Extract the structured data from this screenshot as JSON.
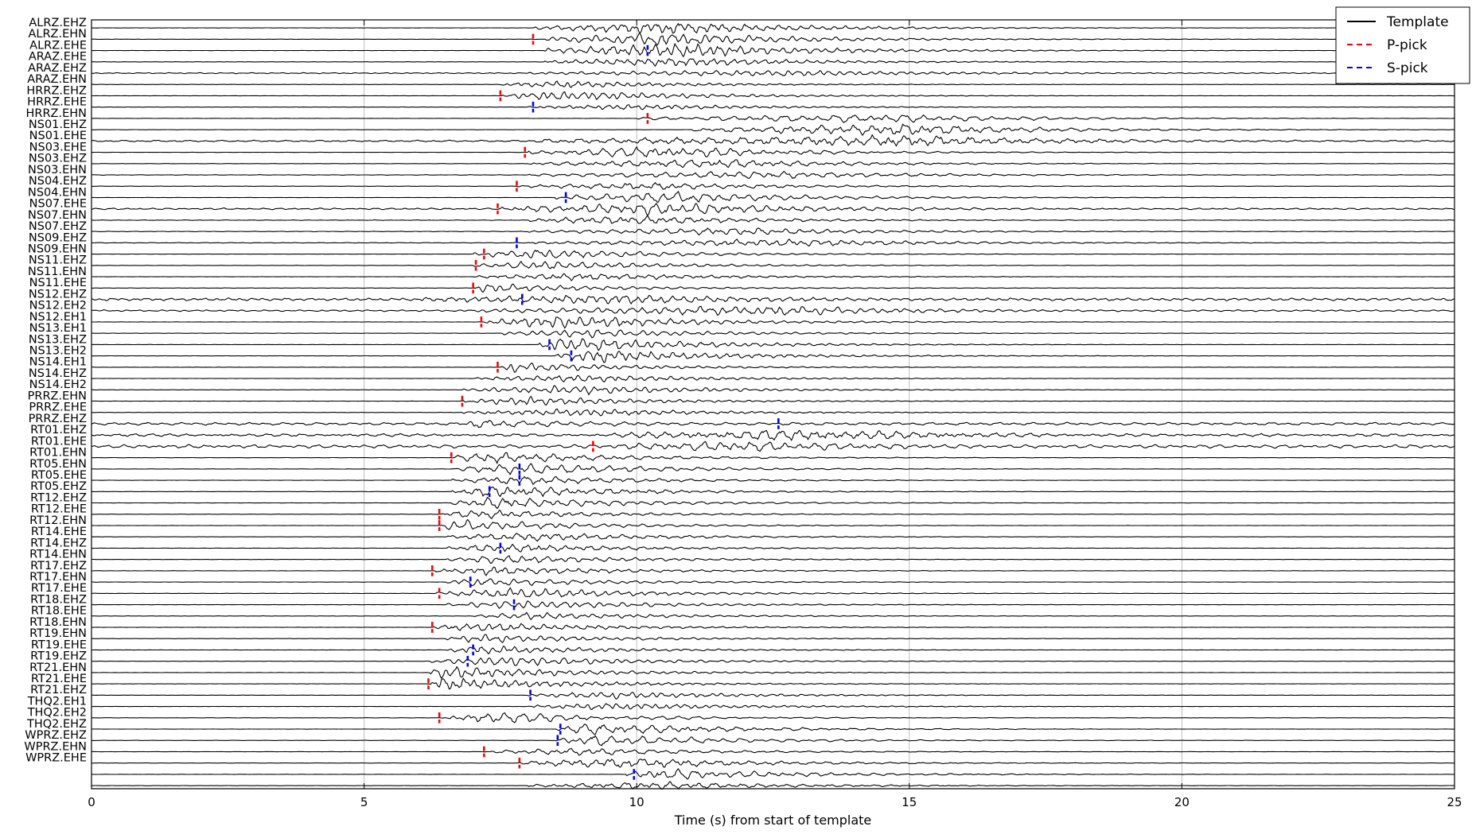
{
  "chart_data": {
    "type": "line",
    "title": "",
    "xlabel": "Time (s) from start of template",
    "ylabel": "",
    "xlim": [
      0,
      25
    ],
    "xticks": [
      0,
      5,
      10,
      15,
      20,
      25
    ],
    "grid": "vertical",
    "legend": {
      "placement": "top-right",
      "entries": [
        {
          "label": "Template",
          "color": "#000000",
          "style": "solid"
        },
        {
          "label": "P-pick",
          "color": "#ff0000",
          "style": "dashed"
        },
        {
          "label": "S-pick",
          "color": "#0000ff",
          "style": "dashed"
        }
      ]
    },
    "traces": [
      {
        "label": "ALRZ.EHZ",
        "onset": 8.1,
        "peak": 10.7,
        "amp": 0.8,
        "noise": 0.05
      },
      {
        "label": "ALRZ.EHN",
        "onset": 8.3,
        "peak": 10.5,
        "amp": 0.9,
        "noise": 0.05,
        "pick": {
          "type": "P",
          "t": 8.1
        }
      },
      {
        "label": "ALRZ.EHE",
        "onset": 8.3,
        "peak": 10.7,
        "amp": 1.0,
        "noise": 0.05,
        "pick": {
          "type": "S",
          "t": 10.2
        }
      },
      {
        "label": "ARAZ.EHE",
        "onset": 8.3,
        "peak": 10.7,
        "amp": 0.6,
        "noise": 0.05
      },
      {
        "label": "ARAZ.EHZ",
        "onset": 8.0,
        "peak": 12.9,
        "amp": 0.4,
        "noise": 0.2
      },
      {
        "label": "ARAZ.EHN",
        "onset": 7.5,
        "peak": 8.6,
        "amp": 0.5,
        "noise": 0.05
      },
      {
        "label": "HRRZ.EHZ",
        "onset": 7.5,
        "peak": 8.6,
        "amp": 0.7,
        "noise": 0.05,
        "pick": {
          "type": "P",
          "t": 7.5
        }
      },
      {
        "label": "HRRZ.EHE",
        "onset": 8.0,
        "peak": 10.0,
        "amp": 0.4,
        "noise": 0.05,
        "pick": {
          "type": "S",
          "t": 8.1
        }
      },
      {
        "label": "HRRZ.EHN",
        "onset": 10.0,
        "peak": 14.6,
        "amp": 0.6,
        "noise": 0.05,
        "pick": {
          "type": "P",
          "t": 10.2
        }
      },
      {
        "label": "NS01.EHZ",
        "onset": 11.0,
        "peak": 14.9,
        "amp": 0.8,
        "noise": 0.05
      },
      {
        "label": "NS01.EHE",
        "onset": 8.0,
        "peak": 15.1,
        "amp": 0.7,
        "noise": 0.3
      },
      {
        "label": "NS03.EHE",
        "onset": 8.0,
        "peak": 10.4,
        "amp": 0.8,
        "noise": 0.05,
        "pick": {
          "type": "P",
          "t": 7.95
        }
      },
      {
        "label": "NS03.EHZ",
        "onset": 8.0,
        "peak": 11.5,
        "amp": 0.6,
        "noise": 0.05
      },
      {
        "label": "NS03.EHN",
        "onset": 8.0,
        "peak": 12.5,
        "amp": 0.5,
        "noise": 0.1
      },
      {
        "label": "NS04.EHZ",
        "onset": 7.8,
        "peak": 10.4,
        "amp": 0.5,
        "noise": 0.05,
        "pick": {
          "type": "P",
          "t": 7.8
        }
      },
      {
        "label": "NS04.EHN",
        "onset": 8.5,
        "peak": 10.6,
        "amp": 0.8,
        "noise": 0.05,
        "pick": {
          "type": "S",
          "t": 8.7
        }
      },
      {
        "label": "NS07.EHE",
        "onset": 7.5,
        "peak": 10.6,
        "amp": 0.8,
        "noise": 0.3,
        "pick": {
          "type": "P",
          "t": 7.45
        }
      },
      {
        "label": "NS07.EHN",
        "onset": 8.0,
        "peak": 9.8,
        "amp": 0.6,
        "noise": 0.1
      },
      {
        "label": "NS07.EHZ",
        "onset": 8.0,
        "peak": 12.0,
        "amp": 0.5,
        "noise": 0.1
      },
      {
        "label": "NS09.EHZ",
        "onset": 8.0,
        "peak": 13.0,
        "amp": 0.5,
        "noise": 0.1,
        "pick": {
          "type": "S",
          "t": 7.8
        }
      },
      {
        "label": "NS09.EHN",
        "onset": 7.0,
        "peak": 8.2,
        "amp": 0.7,
        "noise": 0.05,
        "pick": {
          "type": "P",
          "t": 7.2
        }
      },
      {
        "label": "NS11.EHZ",
        "onset": 7.0,
        "peak": 8.2,
        "amp": 0.6,
        "noise": 0.05,
        "pick": {
          "type": "P",
          "t": 7.05
        }
      },
      {
        "label": "NS11.EHN",
        "onset": 7.0,
        "peak": 9.0,
        "amp": 0.5,
        "noise": 0.05
      },
      {
        "label": "NS11.EHE",
        "onset": 7.0,
        "peak": 7.2,
        "amp": 0.6,
        "noise": 0.05,
        "pick": {
          "type": "P",
          "t": 7.0
        }
      },
      {
        "label": "NS12.EHZ",
        "onset": 6.0,
        "peak": 9.8,
        "amp": 0.6,
        "noise": 0.5,
        "pick": {
          "type": "S",
          "t": 7.9
        }
      },
      {
        "label": "NS12.EH2",
        "onset": 7.0,
        "peak": 12.5,
        "amp": 0.6,
        "noise": 0.3
      },
      {
        "label": "NS12.EH1",
        "onset": 7.2,
        "peak": 8.7,
        "amp": 0.9,
        "noise": 0.05,
        "pick": {
          "type": "P",
          "t": 7.15
        }
      },
      {
        "label": "NS13.EH1",
        "onset": 7.5,
        "peak": 9.0,
        "amp": 0.6,
        "noise": 0.05
      },
      {
        "label": "NS13.EHZ",
        "onset": 8.2,
        "peak": 8.6,
        "amp": 1.0,
        "noise": 0.05,
        "pick": {
          "type": "S",
          "t": 8.4
        }
      },
      {
        "label": "NS13.EH2",
        "onset": 8.5,
        "peak": 9.2,
        "amp": 0.9,
        "noise": 0.05,
        "pick": {
          "type": "S",
          "t": 8.8
        }
      },
      {
        "label": "NS14.EH1",
        "onset": 7.5,
        "peak": 7.5,
        "amp": 0.7,
        "noise": 0.05,
        "pick": {
          "type": "P",
          "t": 7.45
        }
      },
      {
        "label": "NS14.EHZ",
        "onset": 7.0,
        "peak": 9.0,
        "amp": 0.5,
        "noise": 0.05
      },
      {
        "label": "NS14.EH2",
        "onset": 6.8,
        "peak": 9.0,
        "amp": 0.6,
        "noise": 0.05
      },
      {
        "label": "PRRZ.EHN",
        "onset": 6.8,
        "peak": 8.0,
        "amp": 0.6,
        "noise": 0.05,
        "pick": {
          "type": "P",
          "t": 6.8
        }
      },
      {
        "label": "PRRZ.EHE",
        "onset": 6.8,
        "peak": 9.0,
        "amp": 0.5,
        "noise": 0.05
      },
      {
        "label": "PRRZ.EHZ",
        "onset": 6.8,
        "peak": 7.0,
        "amp": 0.5,
        "noise": 0.5,
        "pick": {
          "type": "S",
          "t": 12.6
        }
      },
      {
        "label": "RT01.EHZ",
        "onset": 9.5,
        "peak": 13.3,
        "amp": 0.7,
        "noise": 0.5
      },
      {
        "label": "RT01.EHE",
        "onset": 9.0,
        "peak": 12.0,
        "amp": 0.6,
        "noise": 0.6,
        "pick": {
          "type": "P",
          "t": 9.2
        }
      },
      {
        "label": "RT01.EHN",
        "onset": 6.6,
        "peak": 7.2,
        "amp": 0.8,
        "noise": 0.05,
        "pick": {
          "type": "P",
          "t": 6.6
        }
      },
      {
        "label": "RT05.EHN",
        "onset": 6.6,
        "peak": 7.9,
        "amp": 0.8,
        "noise": 0.05,
        "pick": {
          "type": "S",
          "t": 7.85
        }
      },
      {
        "label": "RT05.EHE",
        "onset": 6.6,
        "peak": 7.9,
        "amp": 0.6,
        "noise": 0.05,
        "pick": {
          "type": "S",
          "t": 7.85
        }
      },
      {
        "label": "RT05.EHZ",
        "onset": 6.6,
        "peak": 7.4,
        "amp": 0.8,
        "noise": 0.05,
        "pick": {
          "type": "S",
          "t": 7.3
        }
      },
      {
        "label": "RT12.EHZ",
        "onset": 6.6,
        "peak": 7.4,
        "amp": 0.8,
        "noise": 0.05
      },
      {
        "label": "RT12.EHE",
        "onset": 6.4,
        "peak": 7.0,
        "amp": 0.6,
        "noise": 0.05,
        "pick": {
          "type": "P",
          "t": 6.38
        }
      },
      {
        "label": "RT12.EHN",
        "onset": 6.4,
        "peak": 6.6,
        "amp": 0.8,
        "noise": 0.05,
        "pick": {
          "type": "P",
          "t": 6.38
        }
      },
      {
        "label": "RT14.EHE",
        "onset": 6.5,
        "peak": 8.0,
        "amp": 0.6,
        "noise": 0.05
      },
      {
        "label": "RT14.EHZ",
        "onset": 6.5,
        "peak": 7.5,
        "amp": 0.6,
        "noise": 0.05,
        "pick": {
          "type": "S",
          "t": 7.5
        }
      },
      {
        "label": "RT14.EHN",
        "onset": 6.5,
        "peak": 7.5,
        "amp": 0.6,
        "noise": 0.05
      },
      {
        "label": "RT17.EHZ",
        "onset": 6.3,
        "peak": 7.4,
        "amp": 0.6,
        "noise": 0.05,
        "pick": {
          "type": "P",
          "t": 6.25
        }
      },
      {
        "label": "RT17.EHN",
        "onset": 6.5,
        "peak": 7.1,
        "amp": 0.6,
        "noise": 0.05,
        "pick": {
          "type": "S",
          "t": 6.95
        }
      },
      {
        "label": "RT17.EHE",
        "onset": 6.3,
        "peak": 7.8,
        "amp": 0.7,
        "noise": 0.05,
        "pick": {
          "type": "P",
          "t": 6.38
        }
      },
      {
        "label": "RT18.EHZ",
        "onset": 6.5,
        "peak": 7.9,
        "amp": 0.6,
        "noise": 0.05,
        "pick": {
          "type": "S",
          "t": 7.75
        }
      },
      {
        "label": "RT18.EHE",
        "onset": 7.0,
        "peak": 8.0,
        "amp": 0.5,
        "noise": 0.05
      },
      {
        "label": "RT18.EHN",
        "onset": 6.2,
        "peak": 7.2,
        "amp": 0.6,
        "noise": 0.05,
        "pick": {
          "type": "P",
          "t": 6.25
        }
      },
      {
        "label": "RT19.EHN",
        "onset": 6.5,
        "peak": 7.1,
        "amp": 0.6,
        "noise": 0.05
      },
      {
        "label": "RT19.EHE",
        "onset": 6.5,
        "peak": 7.1,
        "amp": 0.6,
        "noise": 0.05,
        "pick": {
          "type": "S",
          "t": 7.0
        }
      },
      {
        "label": "RT19.EHZ",
        "onset": 6.2,
        "peak": 7.5,
        "amp": 0.7,
        "noise": 0.05,
        "pick": {
          "type": "S",
          "t": 6.9
        }
      },
      {
        "label": "RT21.EHN",
        "onset": 6.2,
        "peak": 6.3,
        "amp": 0.9,
        "noise": 0.05
      },
      {
        "label": "RT21.EHE",
        "onset": 6.2,
        "peak": 6.3,
        "amp": 0.9,
        "noise": 0.05,
        "pick": {
          "type": "P",
          "t": 6.18
        }
      },
      {
        "label": "RT21.EHZ",
        "onset": 8.0,
        "peak": 9.5,
        "amp": 0.5,
        "noise": 0.05,
        "pick": {
          "type": "S",
          "t": 8.05
        }
      },
      {
        "label": "THQ2.EH1",
        "onset": 8.0,
        "peak": 9.5,
        "amp": 0.5,
        "noise": 0.05
      },
      {
        "label": "THQ2.EH2",
        "onset": 6.4,
        "peak": 7.1,
        "amp": 0.8,
        "noise": 0.05,
        "pick": {
          "type": "P",
          "t": 6.38
        }
      },
      {
        "label": "THQ2.EHZ",
        "onset": 8.5,
        "peak": 9.2,
        "amp": 0.8,
        "noise": 0.05,
        "pick": {
          "type": "S",
          "t": 8.6
        }
      },
      {
        "label": "WPRZ.EHZ",
        "onset": 8.5,
        "peak": 9.2,
        "amp": 0.8,
        "noise": 0.05,
        "pick": {
          "type": "S",
          "t": 8.55
        }
      },
      {
        "label": "WPRZ.EHN",
        "onset": 7.2,
        "peak": 9.0,
        "amp": 0.5,
        "noise": 0.05,
        "pick": {
          "type": "P",
          "t": 7.2
        }
      },
      {
        "label": "WPRZ.EHE",
        "onset": 7.8,
        "peak": 9.8,
        "amp": 0.7,
        "noise": 0.05,
        "pick": {
          "type": "P",
          "t": 7.85
        }
      },
      {
        "label": "",
        "onset": 9.8,
        "peak": 10.3,
        "amp": 0.8,
        "noise": 0.05,
        "pick": {
          "type": "S",
          "t": 9.95
        }
      },
      {
        "label": "",
        "onset": 8.0,
        "peak": 10.5,
        "amp": 0.5,
        "noise": 0.05
      }
    ]
  }
}
